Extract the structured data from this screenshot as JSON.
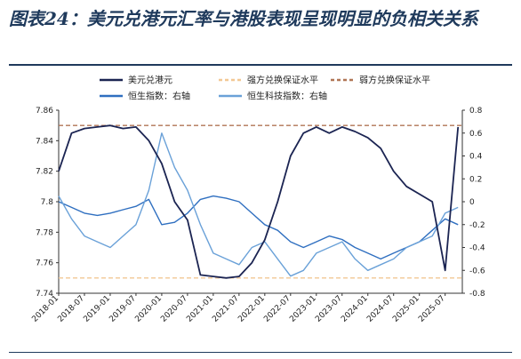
{
  "title": "图表24：美元兑港元汇率与港股表现呈现明显的负相关关系",
  "chart_data": {
    "type": "line",
    "legend": [
      {
        "name": "美元兑港元",
        "color": "#1b2452",
        "style": "solid"
      },
      {
        "name": "强方兑换保证水平",
        "color": "#f2c894",
        "style": "dashed"
      },
      {
        "name": "弱方兑换保证水平",
        "color": "#b07555",
        "style": "dashed"
      },
      {
        "name": "恒生指数：右轴",
        "color": "#2f6fc0",
        "style": "solid"
      },
      {
        "name": "恒生科技指数：右轴",
        "color": "#6aa1d8",
        "style": "solid"
      }
    ],
    "x_ticks": [
      "2018-01",
      "2018-07",
      "2019-01",
      "2019-07",
      "2020-01",
      "2020-07",
      "2021-01",
      "2021-07",
      "2022-01",
      "2022-07",
      "2023-01",
      "2023-07",
      "2024-01",
      "2024-07",
      "2025-01",
      "2025-07"
    ],
    "left_axis": {
      "ylim": [
        7.74,
        7.86
      ],
      "ticks": [
        "7.86",
        "7.84",
        "7.82",
        "7.8",
        "7.78",
        "7.76",
        "7.74"
      ]
    },
    "right_axis": {
      "ylim": [
        -0.8,
        0.8
      ],
      "ticks": [
        "0.8",
        "0.6",
        "0.4",
        "0.2",
        "0",
        "-0.2",
        "-0.4",
        "-0.6",
        "-0.8"
      ]
    },
    "reference_lines": [
      {
        "name": "强方兑换保证水平",
        "value": 7.75
      },
      {
        "name": "弱方兑换保证水平",
        "value": 7.85
      }
    ],
    "x_months": [
      0,
      3,
      6,
      9,
      12,
      15,
      18,
      21,
      24,
      27,
      30,
      33,
      36,
      39,
      42,
      45,
      48,
      51,
      54,
      57,
      60,
      63,
      66,
      69,
      72,
      75,
      78,
      81,
      84,
      87,
      90,
      93
    ],
    "series": [
      {
        "name": "美元兑港元",
        "axis": "left",
        "values": [
          7.82,
          7.845,
          7.848,
          7.849,
          7.85,
          7.848,
          7.849,
          7.84,
          7.825,
          7.8,
          7.788,
          7.752,
          7.751,
          7.75,
          7.751,
          7.76,
          7.775,
          7.8,
          7.83,
          7.845,
          7.849,
          7.845,
          7.849,
          7.846,
          7.842,
          7.835,
          7.82,
          7.81,
          7.805,
          7.8,
          7.755,
          7.849
        ]
      },
      {
        "name": "恒生指数：右轴",
        "axis": "right",
        "values": [
          0.0,
          -0.05,
          -0.1,
          -0.12,
          -0.1,
          -0.07,
          -0.04,
          0.02,
          -0.2,
          -0.18,
          -0.1,
          0.02,
          0.05,
          0.03,
          0.0,
          -0.1,
          -0.2,
          -0.25,
          -0.35,
          -0.4,
          -0.35,
          -0.3,
          -0.33,
          -0.4,
          -0.45,
          -0.5,
          -0.45,
          -0.4,
          -0.35,
          -0.25,
          -0.15,
          -0.2
        ]
      },
      {
        "name": "恒生科技指数：右轴",
        "axis": "right",
        "values": [
          0.05,
          -0.15,
          -0.3,
          -0.35,
          -0.4,
          -0.3,
          -0.2,
          0.1,
          0.6,
          0.3,
          0.1,
          -0.2,
          -0.45,
          -0.5,
          -0.55,
          -0.4,
          -0.35,
          -0.5,
          -0.65,
          -0.6,
          -0.45,
          -0.4,
          -0.35,
          -0.5,
          -0.6,
          -0.55,
          -0.5,
          -0.4,
          -0.35,
          -0.3,
          -0.1,
          -0.05
        ]
      }
    ]
  }
}
